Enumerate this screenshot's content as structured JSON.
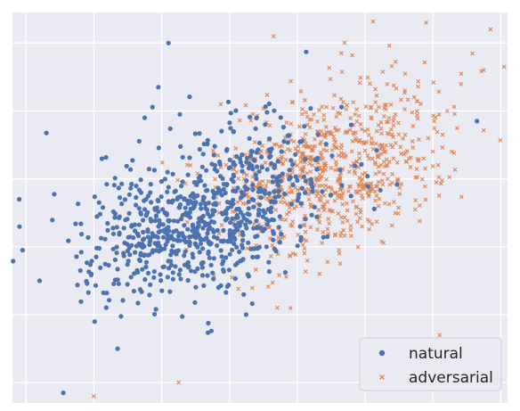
{
  "chart_data": {
    "type": "scatter",
    "title": "",
    "xlabel": "",
    "ylabel": "",
    "xlim": [
      -2.4,
      12.2
    ],
    "ylim": [
      -6.6,
      4.9
    ],
    "grid": true,
    "legend_position": "lower-right",
    "series": [
      {
        "name": "natural",
        "marker": "circle",
        "color": "#4c72b0",
        "center": [
          3.2,
          -1.05
        ],
        "spread": [
          1.7,
          1.25
        ],
        "correlation": 0.45,
        "points": 800,
        "seed": 7,
        "extra_points": [
          [
            -1.4,
            1.35
          ],
          [
            -2.2,
            -0.6
          ],
          [
            -1.6,
            -3.0
          ],
          [
            2.2,
            4.0
          ],
          [
            0.7,
            -5.0
          ],
          [
            -0.9,
            -6.3
          ],
          [
            1.5,
            1.8
          ],
          [
            11.3,
            1.7
          ],
          [
            -2.1,
            -2.1
          ],
          [
            1.9,
            2.7
          ]
        ]
      },
      {
        "name": "adversarial",
        "marker": "x",
        "color": "#dd8452",
        "center": [
          6.9,
          0.3
        ],
        "spread": [
          1.8,
          1.3
        ],
        "correlation": 0.35,
        "points": 800,
        "seed": 19,
        "extra_points": [
          [
            9.8,
            4.6
          ],
          [
            11.7,
            4.4
          ],
          [
            12.1,
            3.3
          ],
          [
            7.3,
            3.7
          ],
          [
            10.2,
            -4.6
          ],
          [
            0.0,
            -6.4
          ],
          [
            5.8,
            -3.8
          ],
          [
            11.5,
            3.2
          ],
          [
            2.5,
            -6.0
          ],
          [
            5.3,
            4.2
          ]
        ]
      }
    ]
  },
  "legend": {
    "items": [
      {
        "label": "natural",
        "color": "#4c72b0",
        "marker": "circle"
      },
      {
        "label": "adversarial",
        "color": "#dd8452",
        "marker": "x"
      }
    ]
  }
}
